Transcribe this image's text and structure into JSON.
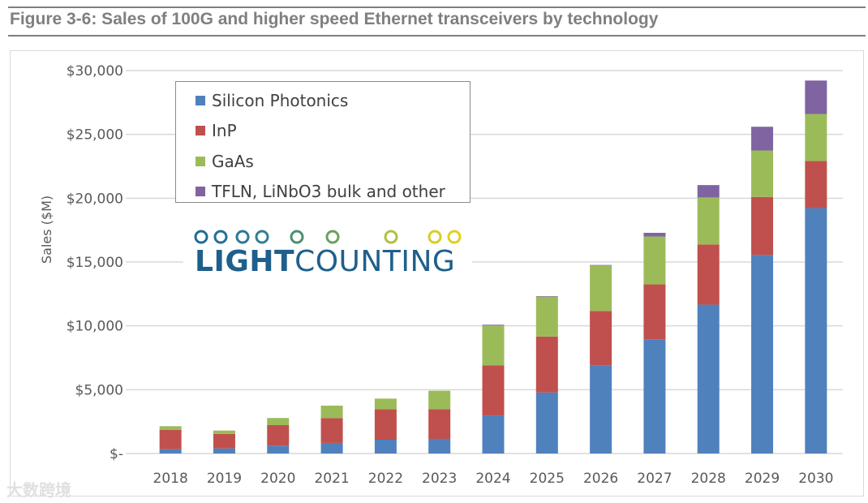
{
  "title": "Figure 3-6: Sales of 100G and higher speed Ethernet transceivers by technology",
  "logo": {
    "bold": "LIGHT",
    "regular": "COUNTING"
  },
  "watermark": "大数跨境",
  "chart_data": {
    "type": "bar",
    "stacked": true,
    "title": "Figure 3-6: Sales of 100G and higher speed Ethernet transceivers by technology",
    "xlabel": "",
    "ylabel": "Sales ($M)",
    "ylim": [
      0,
      30000
    ],
    "yticks": [
      0,
      5000,
      10000,
      15000,
      20000,
      25000,
      30000
    ],
    "ytick_labels": [
      "$-",
      "$5,000",
      "$10,000",
      "$15,000",
      "$20,000",
      "$25,000",
      "$30,000"
    ],
    "grid": true,
    "legend_position": "top-left",
    "categories": [
      "2018",
      "2019",
      "2020",
      "2021",
      "2022",
      "2023",
      "2024",
      "2025",
      "2026",
      "2027",
      "2028",
      "2029",
      "2030"
    ],
    "series": [
      {
        "name": "Silicon Photonics",
        "color": "#4f81bd",
        "values": [
          340,
          400,
          615,
          830,
          1080,
          1145,
          2980,
          4780,
          6880,
          8950,
          11660,
          15550,
          19230
        ]
      },
      {
        "name": "InP",
        "color": "#c0504d",
        "values": [
          1520,
          1130,
          1610,
          1950,
          2395,
          2330,
          3920,
          4380,
          4290,
          4300,
          4720,
          4550,
          3690
        ]
      },
      {
        "name": "GaAs",
        "color": "#9bbb59",
        "values": [
          280,
          270,
          555,
          970,
          825,
          1445,
          3130,
          3130,
          3560,
          3750,
          3680,
          3640,
          3680
        ]
      },
      {
        "name": "TFLN, LiNbO3 bulk and other",
        "color": "#8064a2",
        "values": [
          0,
          0,
          0,
          0,
          0,
          0,
          60,
          40,
          40,
          290,
          970,
          1860,
          2620
        ]
      }
    ]
  }
}
